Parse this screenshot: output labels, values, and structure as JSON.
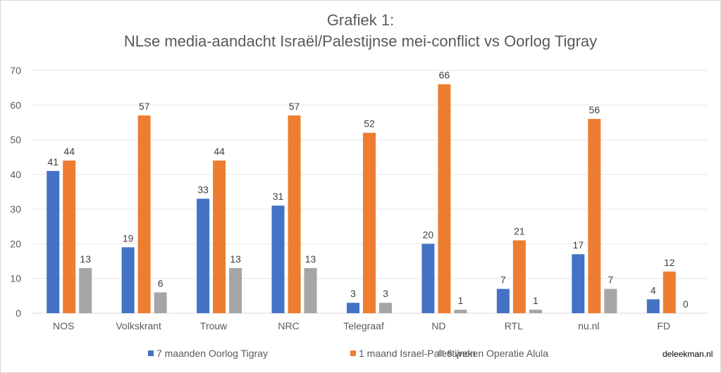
{
  "chart_data": {
    "type": "bar",
    "title_line1": "Grafiek 1:",
    "title_line2": "NLse media-aandacht Israël/Palestijnse mei-conflict vs Oorlog Tigray",
    "categories": [
      "NOS",
      "Volkskrant",
      "Trouw",
      "NRC",
      "Telegraaf",
      "ND",
      "RTL",
      "nu.nl",
      "FD"
    ],
    "series": [
      {
        "name": "7 maanden Oorlog Tigray",
        "color": "#4472c4",
        "values": [
          41,
          19,
          33,
          31,
          3,
          20,
          7,
          17,
          4
        ]
      },
      {
        "name": "1 maand Israel-Palestijnen",
        "color": "#ed7d31",
        "values": [
          44,
          57,
          44,
          57,
          52,
          66,
          21,
          56,
          12
        ]
      },
      {
        "name": "6 weken Operatie Alula",
        "color": "#a5a5a5",
        "values": [
          13,
          6,
          13,
          13,
          3,
          1,
          1,
          7,
          0
        ]
      }
    ],
    "ylim": [
      0,
      70
    ],
    "yticks": [
      0,
      10,
      20,
      30,
      40,
      50,
      60,
      70
    ],
    "grid": true,
    "legend_position": "bottom",
    "xlabel": "",
    "ylabel": ""
  },
  "credit": "deleekman.nl"
}
